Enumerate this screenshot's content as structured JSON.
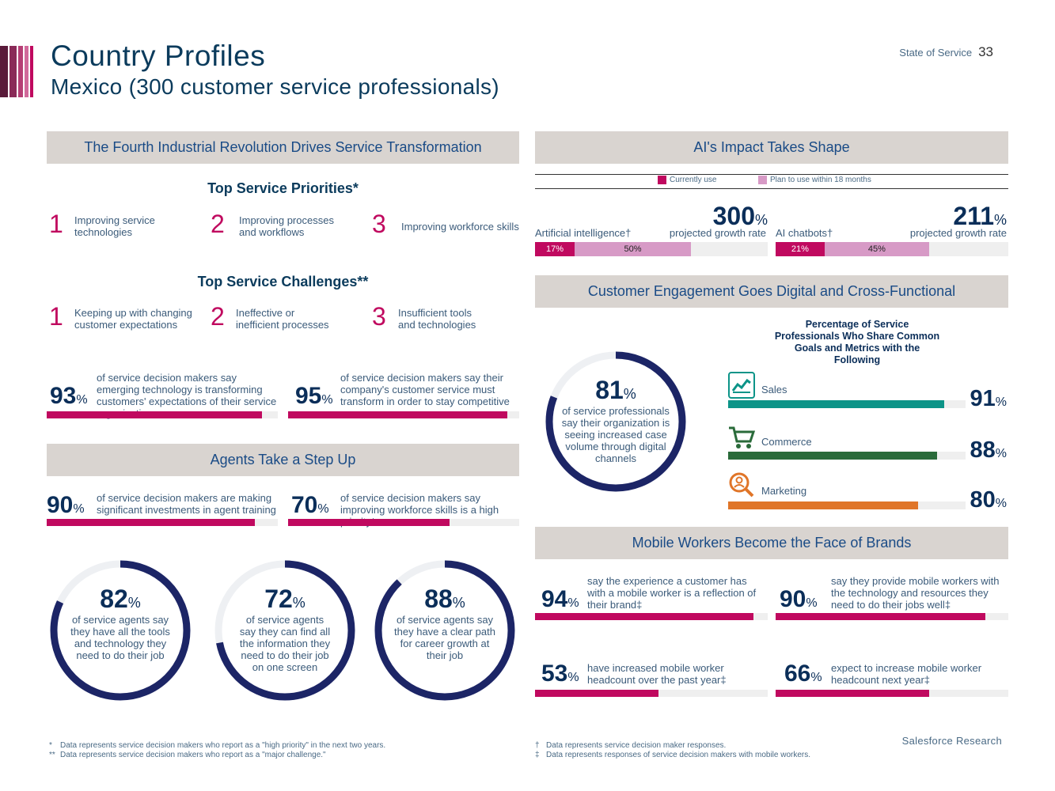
{
  "header": {
    "title": "Country Profiles",
    "subtitle": "Mexico (300 customer service professionals)",
    "report_name": "State of Service",
    "page_number": "33",
    "stripe_colors": [
      "#5a1a3a",
      "#7a2350",
      "#9b2d63",
      "#c2477f",
      "#d16a9b"
    ]
  },
  "fourth_revolution": {
    "band_title": "The Fourth Industrial Revolution Drives Service Transformation",
    "priorities_title": "Top Service Priorities*",
    "priorities": [
      {
        "rank": "1",
        "label": "Improving service technologies"
      },
      {
        "rank": "2",
        "label": "Improving processes and workflows"
      },
      {
        "rank": "3",
        "label": "Improving workforce skills"
      }
    ],
    "challenges_title": "Top Service Challenges**",
    "challenges": [
      {
        "rank": "1",
        "label": "Keeping up with changing customer expectations"
      },
      {
        "rank": "2",
        "label": "Ineffective or inefficient processes"
      },
      {
        "rank": "3",
        "label": "Insufficient tools and technologies"
      }
    ],
    "stats": [
      {
        "value": "93",
        "unit": "%",
        "text": "of service decision makers say emerging technology is transforming customers' expectations of their service organization",
        "fill": 0.93
      },
      {
        "value": "95",
        "unit": "%",
        "text": "of service decision makers say their company's customer service must transform in order to stay competitive",
        "fill": 0.95
      }
    ]
  },
  "agents": {
    "band_title": "Agents Take a Step Up",
    "stats": [
      {
        "value": "90",
        "unit": "%",
        "text": "of service decision makers are making significant investments in agent training",
        "fill": 0.9
      },
      {
        "value": "70",
        "unit": "%",
        "text": "of service decision makers say improving workforce skills is a high priority*",
        "fill": 0.7
      }
    ],
    "rings": [
      {
        "value": "82",
        "unit": "%",
        "text": "of service agents say they have all the tools and technology they need to do their job",
        "fill": 0.82
      },
      {
        "value": "72",
        "unit": "%",
        "text": "of service agents say they can find all the information they need to do their job on one screen",
        "fill": 0.72
      },
      {
        "value": "88",
        "unit": "%",
        "text": "of service agents say they have a clear path for career growth at their job",
        "fill": 0.88
      }
    ]
  },
  "ai": {
    "band_title": "AI's Impact Takes Shape",
    "legend": {
      "current": "Currently use",
      "plan": "Plan to use within 18 months"
    },
    "colors": {
      "current": "#c0095f",
      "plan": "#d79ac6",
      "track": "#efefef"
    },
    "items": [
      {
        "label": "Artificial intelligence†",
        "growth": "300",
        "growth_unit": "%",
        "growth_label": "projected growth rate",
        "current": 17,
        "current_label": "17%",
        "plan": 50,
        "plan_label": "50%"
      },
      {
        "label": "AI chatbots†",
        "growth": "211",
        "growth_unit": "%",
        "growth_label": "projected growth rate",
        "current": 21,
        "current_label": "21%",
        "plan": 45,
        "plan_label": "45%"
      }
    ]
  },
  "engagement": {
    "band_title": "Customer Engagement Goes Digital and Cross-Functional",
    "ring": {
      "value": "81",
      "unit": "%",
      "text": "of service professionals say their organization is seeing increased case volume through digital channels",
      "fill": 0.81
    },
    "chart_title": "Percentage of Service Professionals Who Share Common Goals and Metrics with the Following",
    "categories": [
      {
        "label": "Sales",
        "value": "91",
        "unit": "%",
        "fill": 0.91,
        "color": "#0c9488",
        "icon": "chart-icon"
      },
      {
        "label": "Commerce",
        "value": "88",
        "unit": "%",
        "fill": 0.88,
        "color": "#2a6b3a",
        "icon": "cart-icon"
      },
      {
        "label": "Marketing",
        "value": "80",
        "unit": "%",
        "fill": 0.8,
        "color": "#e07528",
        "icon": "magnifier-icon"
      }
    ]
  },
  "mobile": {
    "band_title": "Mobile Workers Become the Face of Brands",
    "stats": [
      {
        "value": "94",
        "unit": "%",
        "text": "say the experience a customer has with a mobile worker is a reflection of their brand‡",
        "fill": 0.94
      },
      {
        "value": "90",
        "unit": "%",
        "text": "say they provide mobile workers with the technology and resources they need to do their jobs well‡",
        "fill": 0.9
      },
      {
        "value": "53",
        "unit": "%",
        "text": "have increased mobile worker headcount over the past year‡",
        "fill": 0.53
      },
      {
        "value": "66",
        "unit": "%",
        "text": "expect to increase mobile worker headcount next year‡",
        "fill": 0.66
      }
    ]
  },
  "footnotes": {
    "left": [
      {
        "mark": "*",
        "text": "Data represents service decision makers who report as a \"high priority\" in the next two years."
      },
      {
        "mark": "**",
        "text": "Data represents service decision makers who report as a \"major challenge.\""
      }
    ],
    "right": [
      {
        "mark": "†",
        "text": "Data represents service decision maker responses."
      },
      {
        "mark": "‡",
        "text": "Data represents responses of service decision makers with mobile workers."
      }
    ],
    "brand": "Salesforce Research"
  }
}
